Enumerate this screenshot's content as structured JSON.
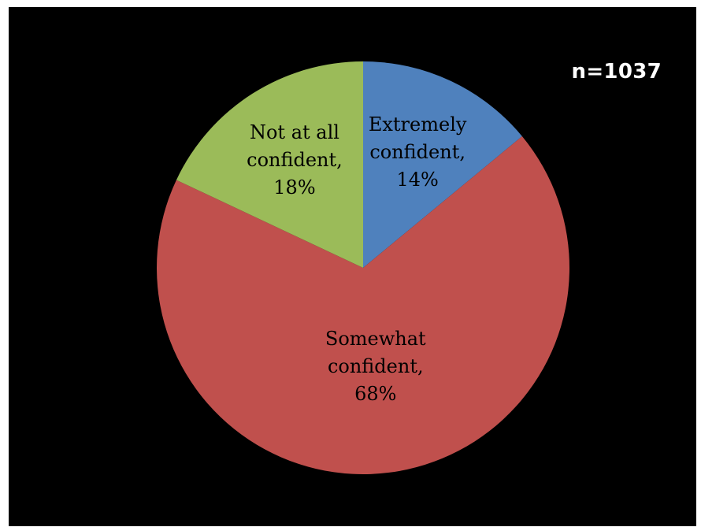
{
  "sample_size_label": "n=1037",
  "chart_data": {
    "type": "pie",
    "start_angle_deg": 0,
    "direction": "clockwise",
    "slices": [
      {
        "label_lines": [
          "Extremely",
          "confident,",
          "14%"
        ],
        "value": 14,
        "color": "#4f81bd"
      },
      {
        "label_lines": [
          "Somewhat",
          "confident,",
          "68%"
        ],
        "value": 68,
        "color": "#c0504d"
      },
      {
        "label_lines": [
          "Not at all",
          "confident,",
          "18%"
        ],
        "value": 18,
        "color": "#9bbb59"
      }
    ]
  }
}
